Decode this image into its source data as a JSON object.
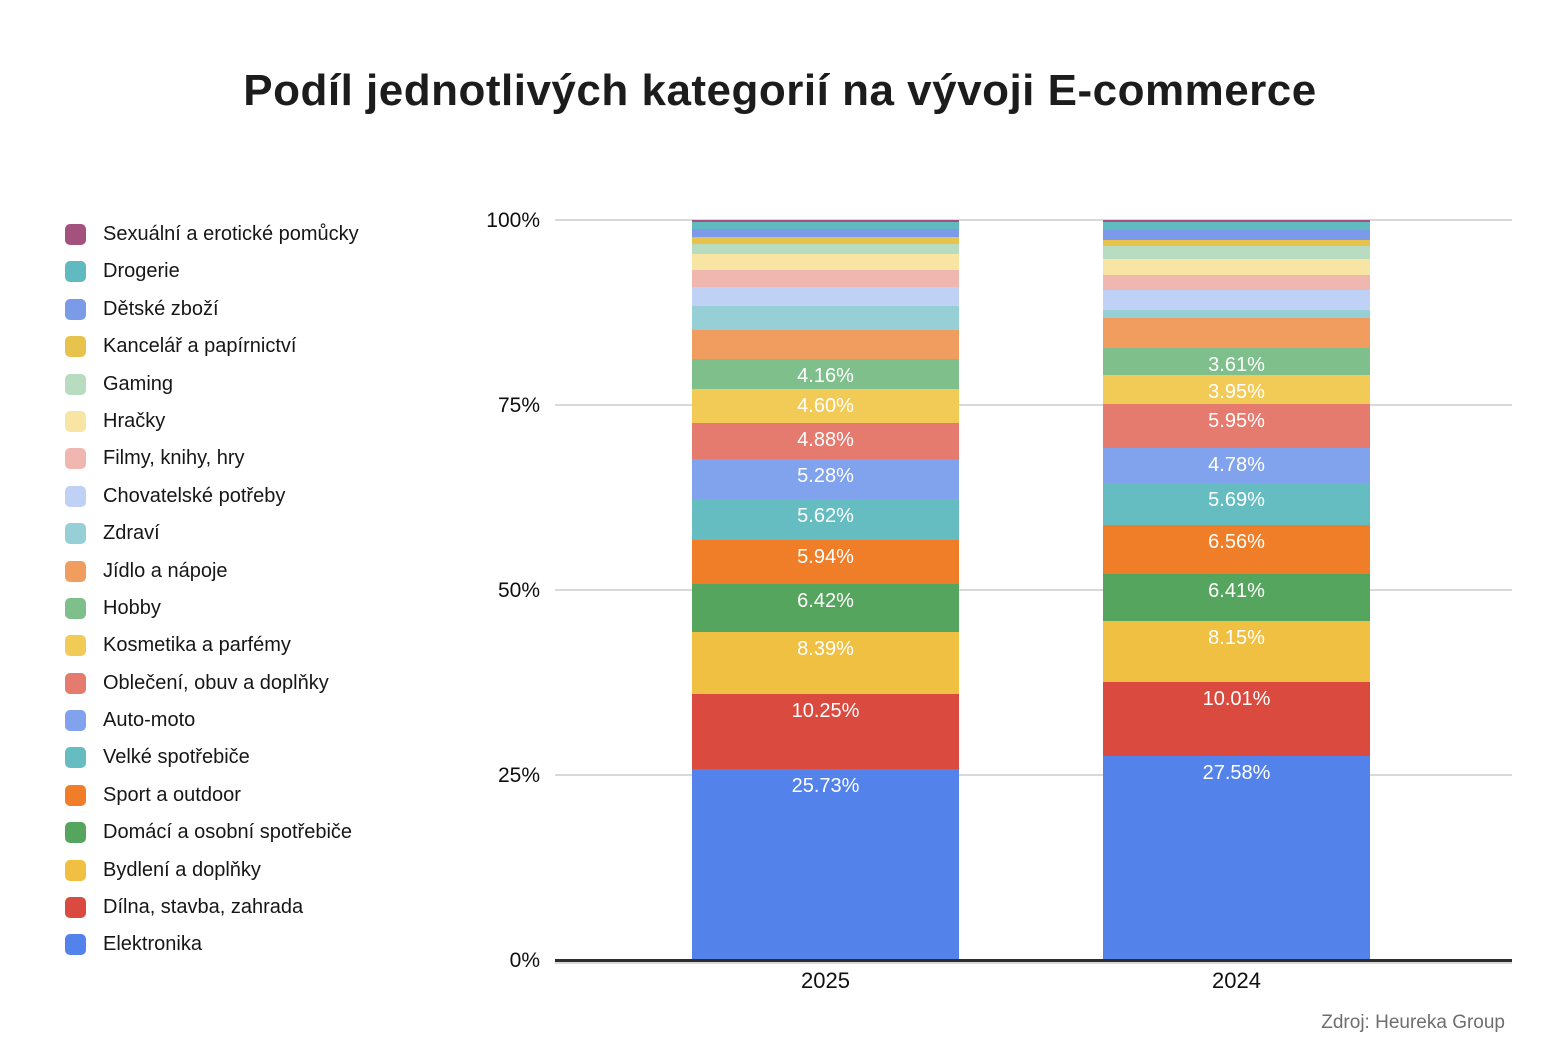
{
  "title": "Podíl jednotlivých kategorií na vývoji E-commerce",
  "source": "Zdroj: Heureka Group",
  "y_axis": {
    "ticks": [
      {
        "label": "100%",
        "value": 100
      },
      {
        "label": "75%",
        "value": 75
      },
      {
        "label": "50%",
        "value": 50
      },
      {
        "label": "25%",
        "value": 25
      },
      {
        "label": "0%",
        "value": 0
      }
    ]
  },
  "x_axis": {
    "labels": [
      "2025",
      "2024"
    ]
  },
  "chart_data": {
    "type": "bar",
    "variant": "stacked-100-percent",
    "title": "Podíl jednotlivých kategorií na vývoji E-commerce",
    "xlabel": "",
    "ylabel": "",
    "ylim": [
      0,
      100
    ],
    "grid": true,
    "legend_position": "left",
    "categories": [
      "2025",
      "2024"
    ],
    "series_note": "order = legend order = top of stack first; values are percent of total; labels null where chart shows no text (values estimated from pixel heights)",
    "series": [
      {
        "name": "Sexuální a erotické pomůcky",
        "color": "#A3517D",
        "values": [
          0.28,
          0.3
        ],
        "labels": null
      },
      {
        "name": "Drogerie",
        "color": "#61BABF",
        "values": [
          1.0,
          1.0
        ],
        "labels": null
      },
      {
        "name": "Dětské zboží",
        "color": "#7B9BE8",
        "values": [
          1.05,
          1.35
        ],
        "labels": null
      },
      {
        "name": "Kancelář a papírnictví",
        "color": "#E7C24D",
        "values": [
          0.92,
          0.8
        ],
        "labels": null
      },
      {
        "name": "Gaming",
        "color": "#B7DCBF",
        "values": [
          1.33,
          1.85
        ],
        "labels": null
      },
      {
        "name": "Hračky",
        "color": "#F8E5A3",
        "values": [
          2.12,
          2.15
        ],
        "labels": null
      },
      {
        "name": "Filmy, knihy, hry",
        "color": "#EFB7B0",
        "values": [
          2.38,
          2.0
        ],
        "labels": null
      },
      {
        "name": "Chovatelské potřeby",
        "color": "#BFD2F6",
        "values": [
          2.55,
          2.7
        ],
        "labels": null
      },
      {
        "name": "Zdraví",
        "color": "#96D0D6",
        "values": [
          3.2,
          1.05
        ],
        "labels": null
      },
      {
        "name": "Jídlo a nápoje",
        "color": "#F09D5F",
        "values": [
          3.9,
          4.11
        ],
        "labels": null
      },
      {
        "name": "Hobby",
        "color": "#7FBF8C",
        "values": [
          4.16,
          3.61
        ],
        "labels": [
          "4.16%",
          "3.61%"
        ]
      },
      {
        "name": "Kosmetika a parfémy",
        "color": "#F2CB57",
        "values": [
          4.6,
          3.95
        ],
        "labels": [
          "4.60%",
          "3.95%"
        ]
      },
      {
        "name": "Oblečení, obuv a doplňky",
        "color": "#E57A6F",
        "values": [
          4.88,
          5.95
        ],
        "labels": [
          "4.88%",
          "5.95%"
        ]
      },
      {
        "name": "Auto-moto",
        "color": "#81A3EE",
        "values": [
          5.28,
          4.78
        ],
        "labels": [
          "5.28%",
          "4.78%"
        ]
      },
      {
        "name": "Velké spotřebiče",
        "color": "#65BDC2",
        "values": [
          5.62,
          5.69
        ],
        "labels": [
          "5.62%",
          "5.69%"
        ]
      },
      {
        "name": "Sport a outdoor",
        "color": "#F07E28",
        "values": [
          5.94,
          6.56
        ],
        "labels": [
          "5.94%",
          "6.56%"
        ]
      },
      {
        "name": "Domácí a osobní spotřebiče",
        "color": "#56A55F",
        "values": [
          6.42,
          6.41
        ],
        "labels": [
          "6.42%",
          "6.41%"
        ]
      },
      {
        "name": "Bydlení a doplňky",
        "color": "#F0C043",
        "values": [
          8.39,
          8.15
        ],
        "labels": [
          "8.39%",
          "8.15%"
        ]
      },
      {
        "name": "Dílna, stavba, zahrada",
        "color": "#DA4A3E",
        "values": [
          10.25,
          10.01
        ],
        "labels": [
          "10.25%",
          "10.01%"
        ]
      },
      {
        "name": "Elektronika",
        "color": "#5282EA",
        "values": [
          25.73,
          27.58
        ],
        "labels": [
          "25.73%",
          "27.58%"
        ]
      }
    ]
  }
}
